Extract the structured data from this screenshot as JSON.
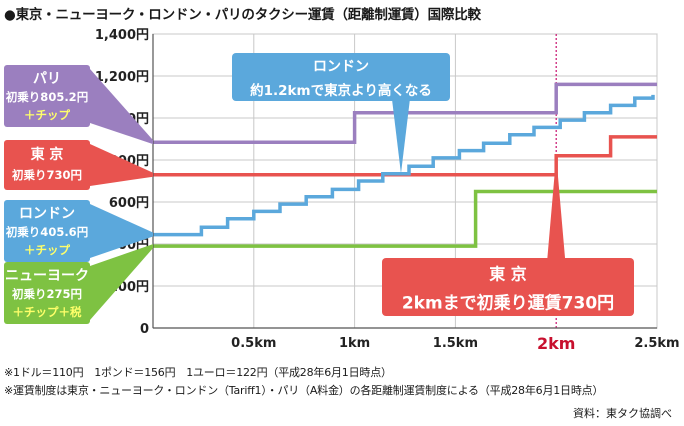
{
  "title": "●東京・ニューヨーク・ロンドン・パリのタクシー運賃（距離制運賃）国際比較",
  "chart_data": {
    "type": "line",
    "xlim": [
      0,
      2.5
    ],
    "ylim": [
      0,
      1400
    ],
    "y_ticks": [
      {
        "value": 0,
        "label": "0"
      },
      {
        "value": 200,
        "label": "200円"
      },
      {
        "value": 400,
        "label": "400円"
      },
      {
        "value": 600,
        "label": "600円"
      },
      {
        "value": 800,
        "label": "800円"
      },
      {
        "value": 1000,
        "label": "1,000円"
      },
      {
        "value": 1200,
        "label": "1,200円"
      },
      {
        "value": 1400,
        "label": "1,400円"
      }
    ],
    "x_ticks": [
      {
        "value": 0.5,
        "label": "0.5km"
      },
      {
        "value": 1,
        "label": "1km"
      },
      {
        "value": 1.5,
        "label": "1.5km"
      },
      {
        "value": 2,
        "label": "2km",
        "highlight": true
      },
      {
        "value": 2.5,
        "label": "2.5km"
      }
    ],
    "grid": true,
    "highlight_x": 2,
    "series": [
      {
        "name": "パリ",
        "color": "#9b7fbf",
        "points": [
          [
            0,
            885
          ],
          [
            1,
            885
          ],
          [
            1,
            1025
          ],
          [
            2,
            1025
          ],
          [
            2,
            1160
          ],
          [
            2.5,
            1160
          ]
        ]
      },
      {
        "name": "東京",
        "color": "#e8534f",
        "points": [
          [
            0,
            730
          ],
          [
            2,
            730
          ],
          [
            2,
            820
          ],
          [
            2.27,
            820
          ],
          [
            2.27,
            910
          ],
          [
            2.5,
            910
          ]
        ]
      },
      {
        "name": "ロンドン",
        "color": "#5ba8dc",
        "points": [
          [
            0,
            445
          ],
          [
            0.24,
            445
          ],
          [
            0.24,
            480
          ],
          [
            0.37,
            480
          ],
          [
            0.37,
            520
          ],
          [
            0.5,
            520
          ],
          [
            0.5,
            555
          ],
          [
            0.63,
            555
          ],
          [
            0.63,
            590
          ],
          [
            0.76,
            590
          ],
          [
            0.76,
            625
          ],
          [
            0.89,
            625
          ],
          [
            0.89,
            660
          ],
          [
            1.02,
            660
          ],
          [
            1.02,
            700
          ],
          [
            1.14,
            700
          ],
          [
            1.14,
            735
          ],
          [
            1.27,
            735
          ],
          [
            1.27,
            770
          ],
          [
            1.39,
            770
          ],
          [
            1.39,
            810
          ],
          [
            1.52,
            810
          ],
          [
            1.52,
            845
          ],
          [
            1.64,
            845
          ],
          [
            1.64,
            880
          ],
          [
            1.77,
            880
          ],
          [
            1.77,
            920
          ],
          [
            1.89,
            920
          ],
          [
            1.89,
            955
          ],
          [
            2.02,
            955
          ],
          [
            2.02,
            990
          ],
          [
            2.14,
            990
          ],
          [
            2.14,
            1025
          ],
          [
            2.27,
            1025
          ],
          [
            2.27,
            1060
          ],
          [
            2.39,
            1060
          ],
          [
            2.39,
            1095
          ],
          [
            2.48,
            1095
          ],
          [
            2.48,
            1110
          ]
        ]
      },
      {
        "name": "ニューヨーク",
        "color": "#7ec242",
        "points": [
          [
            0,
            390
          ],
          [
            1.6,
            390
          ],
          [
            1.6,
            650
          ],
          [
            2.5,
            650
          ]
        ]
      }
    ],
    "labels": [
      {
        "series": "パリ",
        "lines": [
          "パリ",
          "初乗り805.2円",
          "＋チップ"
        ],
        "color": "#9b7fbf"
      },
      {
        "series": "東京",
        "lines": [
          "東 京",
          "初乗り730円"
        ],
        "color": "#e8534f"
      },
      {
        "series": "ロンドン",
        "lines": [
          "ロンドン",
          "初乗り405.6円",
          "＋チップ"
        ],
        "color": "#5ba8dc"
      },
      {
        "series": "ニューヨーク",
        "lines": [
          "ニューヨーク",
          "初乗り275円",
          "＋チップ＋税"
        ],
        "color": "#7ec242"
      }
    ],
    "annotations": [
      {
        "lines": [
          "ロンドン",
          "約1.2kmで東京より高くなる"
        ],
        "color": "#5ba8dc",
        "point": [
          1.23,
          735
        ]
      },
      {
        "lines": [
          "東 京",
          "2kmまで初乗り運賃730円"
        ],
        "color": "#e8534f",
        "point": [
          2.0,
          820
        ]
      }
    ]
  },
  "notes": [
    "※1ドル＝110円　1ポンド＝156円　1ユーロ＝122円（平成28年6月1日時点）",
    "※運賃制度は東京・ニューヨーク・ロンドン（Tariff1）・パリ（A料金）の各距離制運賃制度による（平成28年6月1日時点）"
  ],
  "source": "資料：東タク協調べ"
}
